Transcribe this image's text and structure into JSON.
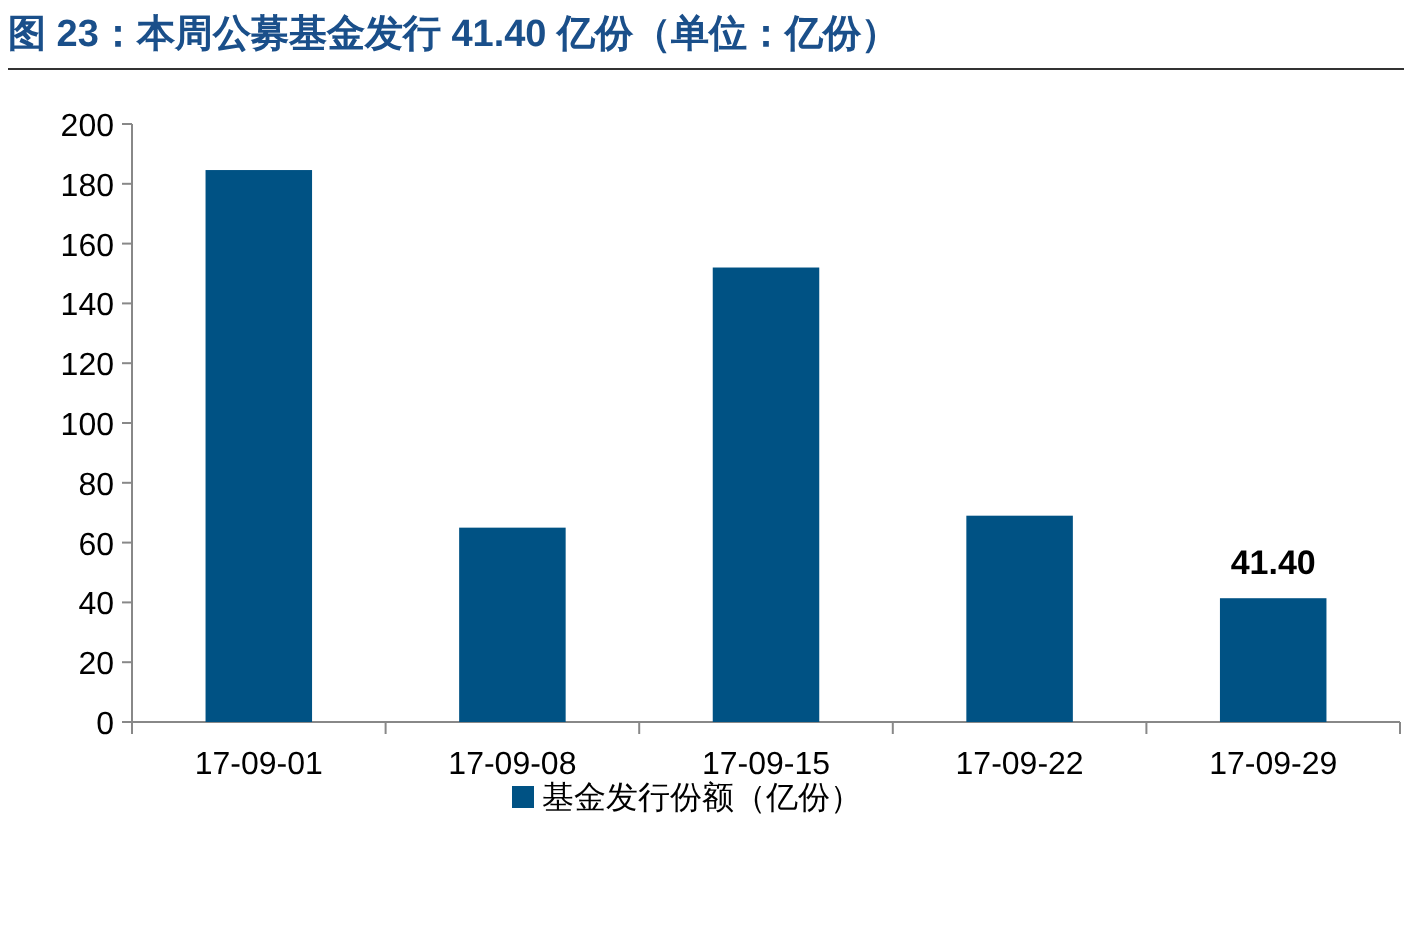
{
  "chart_data": {
    "type": "bar",
    "title": "图 23：本周公募基金发行 41.40 亿份（单位：亿份）",
    "categories": [
      "17-09-01",
      "17-09-08",
      "17-09-15",
      "17-09-22",
      "17-09-29"
    ],
    "series": [
      {
        "name": "基金发行份额（亿份）",
        "color": "#005284",
        "values": [
          184.6,
          65,
          152,
          69,
          41.4
        ],
        "value_labels": [
          null,
          null,
          null,
          null,
          "41.40"
        ]
      }
    ],
    "ylim": [
      0,
      200
    ],
    "yticks": [
      0,
      20,
      40,
      60,
      80,
      100,
      120,
      140,
      160,
      180,
      200
    ],
    "legend": "bottom"
  }
}
